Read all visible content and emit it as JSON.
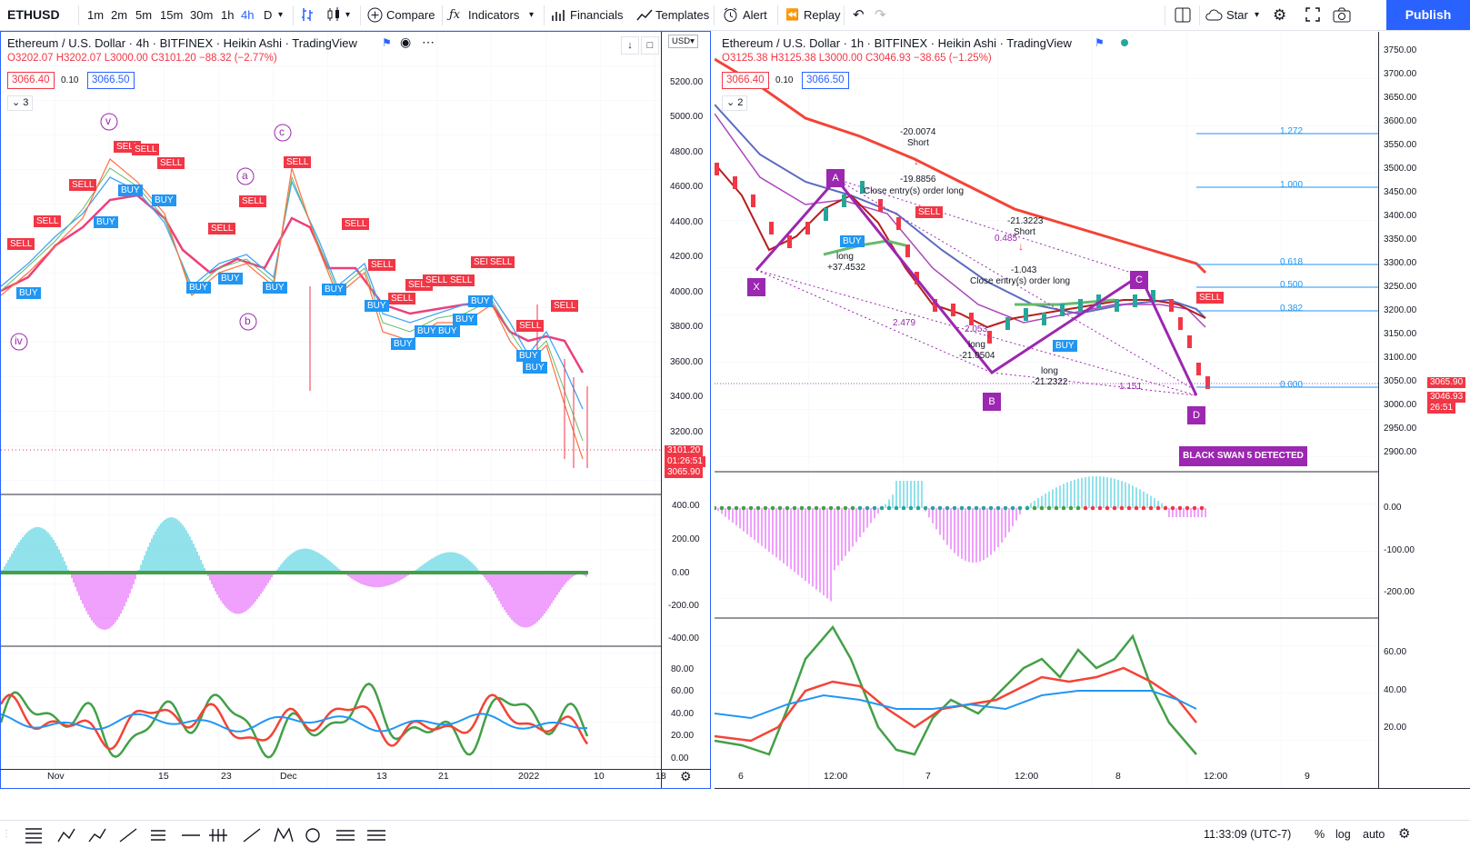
{
  "toolbar": {
    "symbol": "ETHUSD",
    "intervals": [
      "1m",
      "2m",
      "5m",
      "15m",
      "30m",
      "1h",
      "4h",
      "D"
    ],
    "active_interval": "4h",
    "compare": "Compare",
    "indicators": "Indicators",
    "financials": "Financials",
    "templates": "Templates",
    "alert": "Alert",
    "replay": "Replay",
    "star": "Star",
    "publish": "Publish"
  },
  "left_chart": {
    "title": "Ethereum / U.S. Dollar · 4h · BITFINEX · Heikin Ashi · TradingView",
    "ohlc": "O3202.07  H3202.07  L3000.00  C3101.20  −88.32 (−2.77%)",
    "bid": "3066.40",
    "spread": "0.10",
    "ask": "3066.50",
    "indicator_count": "3",
    "currency": "USD",
    "y_labels": [
      "5200.00",
      "5000.00",
      "4800.00",
      "4600.00",
      "4400.00",
      "4200.00",
      "4000.00",
      "3800.00",
      "3600.00",
      "3400.00",
      "3200.00"
    ],
    "price_tags": [
      "3101.20",
      "01:26:51",
      "3065.90"
    ],
    "osc_labels": [
      "400.00",
      "200.00",
      "0.00",
      "-200.00",
      "-400.00"
    ],
    "rsi_labels": [
      "80.00",
      "60.00",
      "40.00",
      "20.00",
      "0.00"
    ],
    "x_labels": [
      "Nov",
      "15",
      "23",
      "Dec",
      "13",
      "21",
      "2022",
      "10",
      "18"
    ],
    "wave_labels": [
      "iv",
      "v",
      "a",
      "b",
      "c"
    ]
  },
  "right_chart": {
    "title": "Ethereum / U.S. Dollar · 1h · BITFINEX · Heikin Ashi · TradingView",
    "ohlc": "O3125.38  H3125.38  L3000.00  C3046.93  −38.65 (−1.25%)",
    "bid": "3066.40",
    "spread": "0.10",
    "ask": "3066.50",
    "indicator_count": "2",
    "y_labels": [
      "3750.00",
      "3700.00",
      "3650.00",
      "3600.00",
      "3550.00",
      "3500.00",
      "3450.00",
      "3400.00",
      "3350.00",
      "3300.00",
      "3250.00",
      "3200.00",
      "3150.00",
      "3100.00",
      "3050.00",
      "3000.00",
      "2950.00",
      "2900.00"
    ],
    "price_tags": [
      "3065.90",
      "3046.93",
      "26:51"
    ],
    "osc_labels": [
      "0.00",
      "-100.00",
      "-200.00"
    ],
    "rsi_labels": [
      "60.00",
      "40.00",
      "20.00"
    ],
    "x_labels": [
      "6",
      "12:00",
      "7",
      "12:00",
      "8",
      "12:00",
      "9"
    ],
    "fib": [
      {
        "ratio": "1.272"
      },
      {
        "ratio": "1.000"
      },
      {
        "ratio": "0.618"
      },
      {
        "ratio": "0.500"
      },
      {
        "ratio": "0.382"
      },
      {
        "ratio": "0.000"
      }
    ],
    "pattern_points": [
      "X",
      "A",
      "B",
      "C",
      "D"
    ],
    "ratios": [
      "2.479",
      "2.053",
      "0.485",
      "1.151"
    ],
    "annotations": {
      "short1_val": "-20.0074",
      "short1": "Short",
      "short2_val": "-19.8856",
      "close_long1": "Close entry(s) order long",
      "long1": "long",
      "long1_val": "+37.4532",
      "short3_val": "-21.3223",
      "short3": "Short",
      "val_1043": "-1.043",
      "close_long2": "Close entry(s) order long",
      "long2": "long",
      "long2_val": "-21.0504",
      "long3": "long",
      "long3_val": "-21.2322"
    },
    "black_swan": "BLACK SWAN 5 DETECTED"
  },
  "signals": {
    "buy": "BUY",
    "sell": "SELL"
  },
  "bottom": {
    "time": "11:33:09 (UTC-7)",
    "percent": "%",
    "log": "log",
    "auto": "auto"
  },
  "colors": {
    "accent": "#2962ff",
    "bear": "#f23645",
    "bull": "#26a69a",
    "pattern": "#9c27b0",
    "osc_pos": "#26c6da",
    "osc_neg": "#e040fb",
    "rsi_green": "#43a047",
    "rsi_red": "#f44336",
    "rsi_blue": "#2196f3"
  }
}
